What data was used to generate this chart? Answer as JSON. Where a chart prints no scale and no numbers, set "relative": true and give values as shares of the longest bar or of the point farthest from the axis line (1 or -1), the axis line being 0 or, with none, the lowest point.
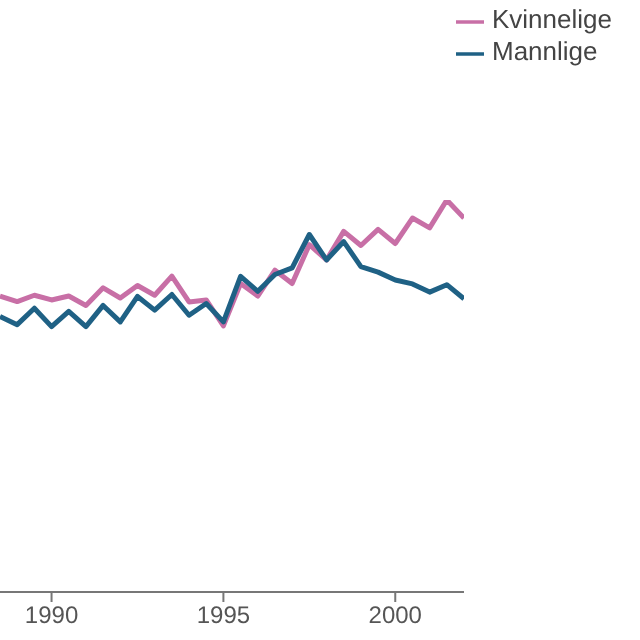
{
  "chart_data": {
    "type": "line",
    "relative": true,
    "x": [
      1988.5,
      1989,
      1989.5,
      1990,
      1990.5,
      1991,
      1991.5,
      1992,
      1992.5,
      1993,
      1993.5,
      1994,
      1994.5,
      1995,
      1995.5,
      1996,
      1996.5,
      1997,
      1997.5,
      1998,
      1998.5,
      1999,
      1999.5,
      2000,
      2000.5,
      2001,
      2001.5,
      2002
    ],
    "xlim": [
      1988.5,
      2002
    ],
    "xticks": [
      1990,
      1995,
      2000
    ],
    "legend": "top right",
    "marker": "none",
    "line_style": "solid",
    "grid": false,
    "series": [
      {
        "name": "Kvinnelige",
        "color": "#c86fa6",
        "values": [
          0.755,
          0.741,
          0.757,
          0.745,
          0.755,
          0.731,
          0.776,
          0.75,
          0.782,
          0.757,
          0.806,
          0.74,
          0.745,
          0.679,
          0.787,
          0.755,
          0.821,
          0.787,
          0.886,
          0.847,
          0.92,
          0.884,
          0.925,
          0.889,
          0.954,
          0.929,
          1,
          0.954
        ]
      },
      {
        "name": "Mannlige",
        "color": "#1f6185",
        "values": [
          0.703,
          0.682,
          0.724,
          0.677,
          0.716,
          0.677,
          0.731,
          0.689,
          0.754,
          0.719,
          0.759,
          0.706,
          0.736,
          0.689,
          0.805,
          0.767,
          0.81,
          0.827,
          0.912,
          0.847,
          0.894,
          0.83,
          0.816,
          0.796,
          0.786,
          0.765,
          0.784,
          0.748
        ]
      }
    ]
  }
}
